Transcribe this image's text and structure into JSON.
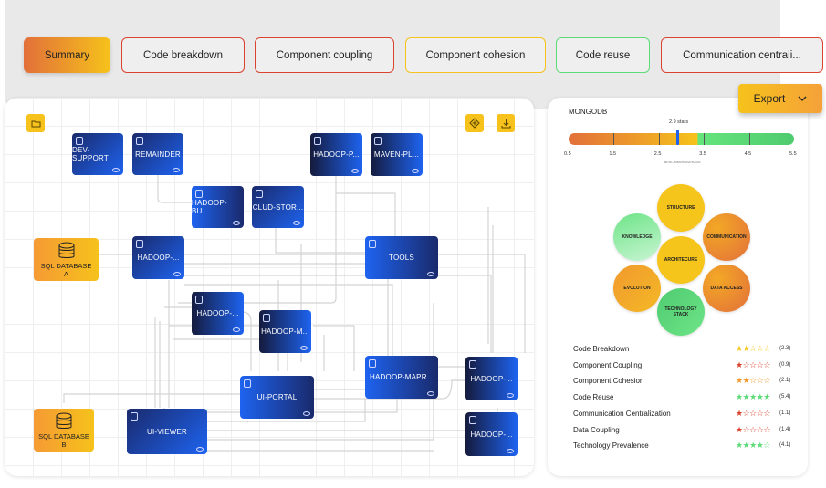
{
  "tabs": [
    {
      "label": "Summary",
      "color": "#e2703a",
      "active": true
    },
    {
      "label": "Code breakdown",
      "color": "#d9432f"
    },
    {
      "label": "Component coupling",
      "color": "#d9432f"
    },
    {
      "label": "Component cohesion",
      "color": "#f6c21b"
    },
    {
      "label": "Code reuse",
      "color": "#5ddb78"
    },
    {
      "label": "Communication centrali...",
      "color": "#d9432f"
    }
  ],
  "export": {
    "label": "Export",
    "icon": "chevron-down-icon"
  },
  "graph": {
    "toolbar": {
      "folder_icon": "folder-icon",
      "layout_icon": "layout-icon",
      "download_icon": "download-icon"
    },
    "nodes": [
      {
        "label": "DEV-SUPPORT"
      },
      {
        "label": "REMAINDER"
      },
      {
        "label": "HADOOP-BU..."
      },
      {
        "label": "CLUD-STOR..."
      },
      {
        "label": "HADOOP-P..."
      },
      {
        "label": "MAVEN-PL..."
      },
      {
        "label": "HADOOP-..."
      },
      {
        "label": "TOOLS"
      },
      {
        "label": "HADOOP-..."
      },
      {
        "label": "HADOOP-M..."
      },
      {
        "label": "HADOOP-MAPR..."
      },
      {
        "label": "HADOOP-..."
      },
      {
        "label": "UI-PORTAL"
      },
      {
        "label": "UI-VIEWER"
      },
      {
        "label": "HADOOP-..."
      }
    ],
    "databases": [
      {
        "line1": "SQL DATABASE",
        "line2": "A"
      },
      {
        "line1": "SQL DATABASE",
        "line2": "B"
      }
    ]
  },
  "summary": {
    "title": "MONGODB",
    "score": {
      "value": 2.9,
      "label": "2.9 stars",
      "min": 0.5,
      "max": 5.5,
      "ticks": [
        "0.5",
        "1.5",
        "2.5",
        "3.5",
        "4.5",
        "5.5"
      ],
      "benchmark_label": "BENCHMARK AVERAGE"
    },
    "aspects": {
      "center": "ARCHITECURE",
      "structure": "STRUCTURE",
      "communication": "COMMUNICATION",
      "data_access": "DATA ACCESS",
      "technology_stack": "TECHNOLOGY STACK",
      "evolution": "EVOLUTION",
      "knowledge": "KNOWLEDGE"
    },
    "ratings": [
      {
        "label": "Code Breakdown",
        "stars": 2,
        "value": "(2.3)",
        "color": "#f5c518"
      },
      {
        "label": "Component Coupling",
        "stars": 1,
        "value": "(0.9)",
        "color": "#d9432f"
      },
      {
        "label": "Component Cohesion",
        "stars": 2,
        "value": "(2.1)",
        "color": "#f29a2e"
      },
      {
        "label": "Code Reuse",
        "stars": 5,
        "value": "(5.4)",
        "color": "#5ddb78"
      },
      {
        "label": "Communication Centralization",
        "stars": 1,
        "value": "(1.1)",
        "color": "#d9432f"
      },
      {
        "label": "Data Coupling",
        "stars": 1,
        "value": "(1.4)",
        "color": "#d9432f"
      },
      {
        "label": "Technology Prevalence",
        "stars": 4,
        "value": "(4.1)",
        "color": "#5ddb78"
      }
    ]
  }
}
